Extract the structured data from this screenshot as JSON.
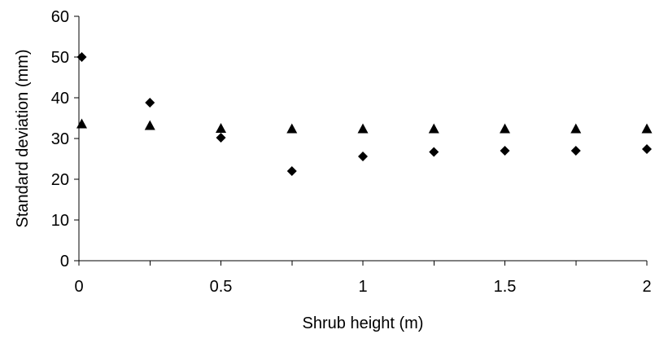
{
  "chart_data": {
    "type": "scatter",
    "title": "",
    "xlabel": "Shrub height (m)",
    "ylabel": "Standard deviation (mm)",
    "xlim": [
      0,
      2
    ],
    "ylim": [
      0,
      60
    ],
    "x_ticks": [
      0,
      0.5,
      1,
      1.5,
      2
    ],
    "x_tick_labels": [
      "0",
      "0.5",
      "1",
      "1.5",
      "2"
    ],
    "x_minor_ticks": [
      0.25,
      0.75,
      1.25,
      1.75
    ],
    "y_ticks": [
      0,
      10,
      20,
      30,
      40,
      50,
      60
    ],
    "y_tick_labels": [
      "0",
      "10",
      "20",
      "30",
      "40",
      "50",
      "60"
    ],
    "grid": false,
    "legend": "none",
    "series": [
      {
        "marker": "diamond",
        "color": "#000000",
        "points": [
          {
            "x": 0.01,
            "y": 50
          },
          {
            "x": 0.25,
            "y": 38.8
          },
          {
            "x": 0.5,
            "y": 30.2
          },
          {
            "x": 0.75,
            "y": 22
          },
          {
            "x": 1,
            "y": 25.6
          },
          {
            "x": 1.25,
            "y": 26.7
          },
          {
            "x": 1.5,
            "y": 27
          },
          {
            "x": 1.75,
            "y": 27
          },
          {
            "x": 2,
            "y": 27.4
          }
        ]
      },
      {
        "marker": "triangle",
        "color": "#000000",
        "points": [
          {
            "x": 0.01,
            "y": 33.7
          },
          {
            "x": 0.25,
            "y": 33.3
          },
          {
            "x": 0.5,
            "y": 32.6
          },
          {
            "x": 0.75,
            "y": 32.5
          },
          {
            "x": 1,
            "y": 32.5
          },
          {
            "x": 1.25,
            "y": 32.5
          },
          {
            "x": 1.5,
            "y": 32.5
          },
          {
            "x": 1.75,
            "y": 32.5
          },
          {
            "x": 2,
            "y": 32.5
          }
        ]
      }
    ]
  }
}
